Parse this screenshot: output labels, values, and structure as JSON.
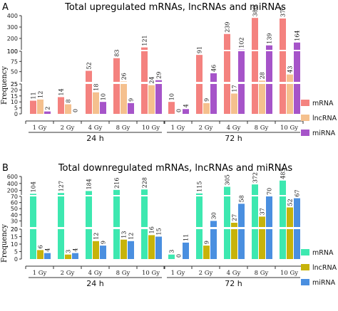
{
  "panels": [
    {
      "letter": "A",
      "title": "Total upregulated mRNAs, lncRNAs and miRNAs",
      "ylabel": "Frequency",
      "groups": [
        "24 h",
        "72 h"
      ],
      "categories": [
        "1 Gy",
        "2 Gy",
        "4 Gy",
        "8 Gy",
        "10 Gy"
      ],
      "colors": {
        "mRNA": "#f4827f",
        "lncRNA": "#f5c08e",
        "miRNA": "#a654c9"
      },
      "legend": [
        "mRNA",
        "lncRNA",
        "miRNA"
      ],
      "axis_segments": [
        {
          "range": [
            0,
            25
          ],
          "ticks": [
            0,
            5,
            10,
            15,
            20,
            25
          ]
        },
        {
          "range": [
            25,
            100
          ],
          "ticks": [
            25,
            50,
            75,
            100
          ]
        },
        {
          "range": [
            100,
            400
          ],
          "ticks": [
            100,
            200,
            300,
            400
          ]
        }
      ],
      "series": [
        {
          "name": "mRNA",
          "values": [
            11,
            14,
            52,
            83,
            121,
            10,
            91,
            239,
            380,
            375
          ]
        },
        {
          "name": "lncRNA",
          "values": [
            12,
            8,
            18,
            26,
            24,
            0,
            9,
            17,
            28,
            43
          ]
        },
        {
          "name": "miRNA",
          "values": [
            2,
            0,
            10,
            9,
            29,
            4,
            46,
            102,
            139,
            164
          ]
        }
      ]
    },
    {
      "letter": "B",
      "title": "Total downregulated mRNAs, lncRNAs and miRNAs",
      "ylabel": "Frequency",
      "groups": [
        "24 h",
        "72 h"
      ],
      "categories": [
        "1 Gy",
        "2 Gy",
        "4 Gy",
        "8 Gy",
        "10 Gy"
      ],
      "colors": {
        "mRNA": "#3de8b0",
        "lncRNA": "#c7b30a",
        "miRNA": "#4a8fe0"
      },
      "legend": [
        "mRNA",
        "lncRNA",
        "miRNA"
      ],
      "axis_segments": [
        {
          "range": [
            0,
            20
          ],
          "ticks": [
            0,
            5,
            10,
            15,
            20
          ]
        },
        {
          "range": [
            20,
            70
          ],
          "ticks": [
            20,
            30,
            40,
            50,
            60,
            70
          ]
        },
        {
          "range": [
            70,
            600
          ],
          "ticks": [
            200,
            400,
            600
          ]
        }
      ],
      "series": [
        {
          "name": "mRNA",
          "values": [
            104,
            127,
            184,
            216,
            228,
            3,
            115,
            305,
            372,
            483
          ]
        },
        {
          "name": "lncRNA",
          "values": [
            6,
            3,
            12,
            13,
            16,
            0,
            9,
            27,
            37,
            52
          ]
        },
        {
          "name": "miRNA",
          "values": [
            4,
            4,
            9,
            12,
            15,
            11,
            30,
            58,
            70,
            67
          ]
        }
      ]
    }
  ],
  "chart_data": [
    {
      "type": "bar",
      "title": "Total upregulated mRNAs, lncRNAs and miRNAs",
      "xlabel": "",
      "ylabel": "Frequency",
      "categories": [
        "24 h 1 Gy",
        "24 h 2 Gy",
        "24 h 4 Gy",
        "24 h 8 Gy",
        "24 h 10 Gy",
        "72 h 1 Gy",
        "72 h 2 Gy",
        "72 h 4 Gy",
        "72 h 8 Gy",
        "72 h 10 Gy"
      ],
      "series": [
        {
          "name": "mRNA",
          "values": [
            11,
            14,
            52,
            83,
            121,
            10,
            91,
            239,
            380,
            375
          ]
        },
        {
          "name": "lncRNA",
          "values": [
            12,
            8,
            18,
            26,
            24,
            0,
            9,
            17,
            28,
            43
          ]
        },
        {
          "name": "miRNA",
          "values": [
            2,
            0,
            10,
            9,
            29,
            4,
            46,
            102,
            139,
            164
          ]
        }
      ],
      "ylim": [
        0,
        400
      ],
      "broken_axis": true,
      "legend_position": "right"
    },
    {
      "type": "bar",
      "title": "Total downregulated mRNAs, lncRNAs and miRNAs",
      "xlabel": "",
      "ylabel": "Frequency",
      "categories": [
        "24 h 1 Gy",
        "24 h 2 Gy",
        "24 h 4 Gy",
        "24 h 8 Gy",
        "24 h 10 Gy",
        "72 h 1 Gy",
        "72 h 2 Gy",
        "72 h 4 Gy",
        "72 h 8 Gy",
        "72 h 10 Gy"
      ],
      "series": [
        {
          "name": "mRNA",
          "values": [
            104,
            127,
            184,
            216,
            228,
            3,
            115,
            305,
            372,
            483
          ]
        },
        {
          "name": "lncRNA",
          "values": [
            6,
            3,
            12,
            13,
            16,
            0,
            9,
            27,
            37,
            52
          ]
        },
        {
          "name": "miRNA",
          "values": [
            4,
            4,
            9,
            12,
            15,
            11,
            30,
            58,
            70,
            67
          ]
        }
      ],
      "ylim": [
        0,
        600
      ],
      "broken_axis": true,
      "legend_position": "right"
    }
  ]
}
